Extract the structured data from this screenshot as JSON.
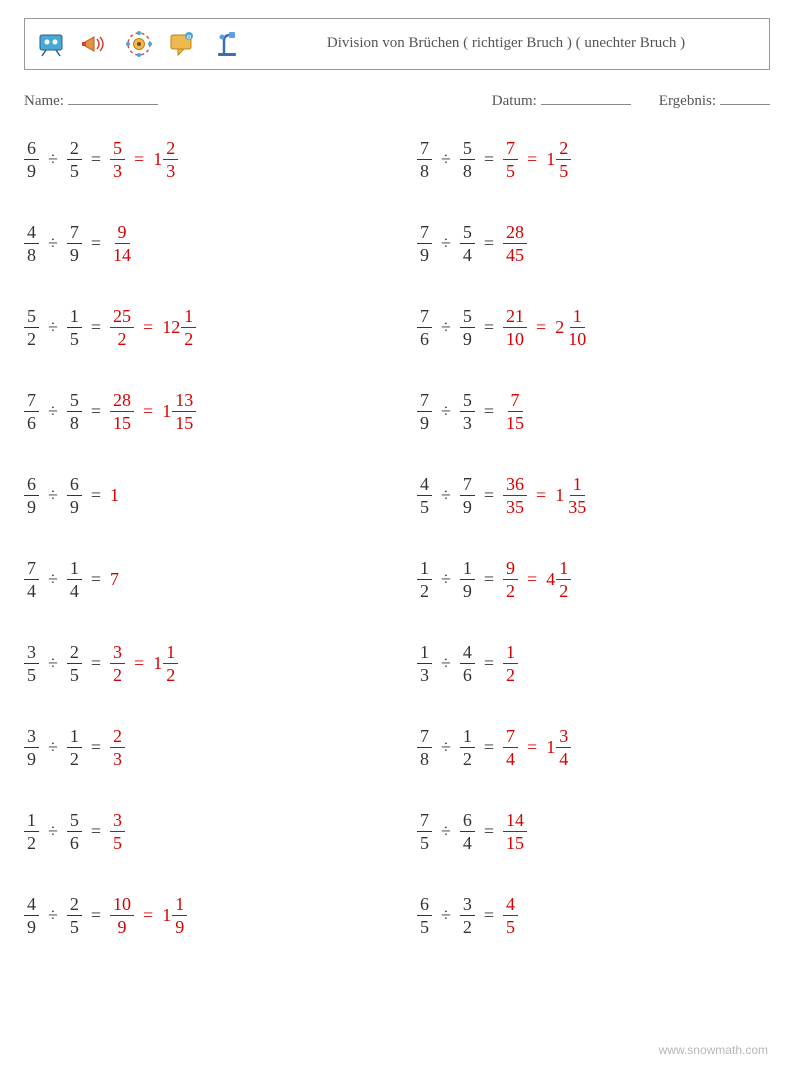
{
  "colors": {
    "answer": "#d40202",
    "text": "#333333",
    "border": "#999999",
    "metaText": "#555555",
    "footer": "#b7b7b7",
    "background": "#ffffff"
  },
  "typography": {
    "bodyFont": "Georgia, Times New Roman, serif",
    "problemFontSize": 18,
    "titleFontSize": 15,
    "metaFontSize": 15,
    "footerFontSize": 12
  },
  "layout": {
    "pageWidth": 794,
    "pageHeight": 1053,
    "columns": 2,
    "rowGap": 38,
    "headerHeight": 52
  },
  "header": {
    "title": "Division von Brüchen ( richtiger Bruch ) ( unechter Bruch )",
    "icons": [
      "presentation-icon",
      "megaphone-icon",
      "target-icon",
      "chat-icon",
      "microscope-icon"
    ]
  },
  "meta": {
    "nameLabel": "Name:",
    "dateLabel": "Datum:",
    "resultLabel": "Ergebnis:"
  },
  "problems": {
    "left": [
      {
        "a": {
          "n": 6,
          "d": 9
        },
        "b": {
          "n": 2,
          "d": 5
        },
        "r1": {
          "n": 5,
          "d": 3
        },
        "r2": {
          "w": 1,
          "n": 2,
          "d": 3
        }
      },
      {
        "a": {
          "n": 4,
          "d": 8
        },
        "b": {
          "n": 7,
          "d": 9
        },
        "r1": {
          "n": 9,
          "d": 14
        }
      },
      {
        "a": {
          "n": 5,
          "d": 2
        },
        "b": {
          "n": 1,
          "d": 5
        },
        "r1": {
          "n": 25,
          "d": 2
        },
        "r2": {
          "w": 12,
          "n": 1,
          "d": 2
        }
      },
      {
        "a": {
          "n": 7,
          "d": 6
        },
        "b": {
          "n": 5,
          "d": 8
        },
        "r1": {
          "n": 28,
          "d": 15
        },
        "r2": {
          "w": 1,
          "n": 13,
          "d": 15
        }
      },
      {
        "a": {
          "n": 6,
          "d": 9
        },
        "b": {
          "n": 6,
          "d": 9
        },
        "r1": {
          "int": 1
        }
      },
      {
        "a": {
          "n": 7,
          "d": 4
        },
        "b": {
          "n": 1,
          "d": 4
        },
        "r1": {
          "int": 7
        }
      },
      {
        "a": {
          "n": 3,
          "d": 5
        },
        "b": {
          "n": 2,
          "d": 5
        },
        "r1": {
          "n": 3,
          "d": 2
        },
        "r2": {
          "w": 1,
          "n": 1,
          "d": 2
        }
      },
      {
        "a": {
          "n": 3,
          "d": 9
        },
        "b": {
          "n": 1,
          "d": 2
        },
        "r1": {
          "n": 2,
          "d": 3
        }
      },
      {
        "a": {
          "n": 1,
          "d": 2
        },
        "b": {
          "n": 5,
          "d": 6
        },
        "r1": {
          "n": 3,
          "d": 5
        }
      },
      {
        "a": {
          "n": 4,
          "d": 9
        },
        "b": {
          "n": 2,
          "d": 5
        },
        "r1": {
          "n": 10,
          "d": 9
        },
        "r2": {
          "w": 1,
          "n": 1,
          "d": 9
        }
      }
    ],
    "right": [
      {
        "a": {
          "n": 7,
          "d": 8
        },
        "b": {
          "n": 5,
          "d": 8
        },
        "r1": {
          "n": 7,
          "d": 5
        },
        "r2": {
          "w": 1,
          "n": 2,
          "d": 5
        }
      },
      {
        "a": {
          "n": 7,
          "d": 9
        },
        "b": {
          "n": 5,
          "d": 4
        },
        "r1": {
          "n": 28,
          "d": 45
        }
      },
      {
        "a": {
          "n": 7,
          "d": 6
        },
        "b": {
          "n": 5,
          "d": 9
        },
        "r1": {
          "n": 21,
          "d": 10
        },
        "r2": {
          "w": 2,
          "n": 1,
          "d": 10
        }
      },
      {
        "a": {
          "n": 7,
          "d": 9
        },
        "b": {
          "n": 5,
          "d": 3
        },
        "r1": {
          "n": 7,
          "d": 15
        }
      },
      {
        "a": {
          "n": 4,
          "d": 5
        },
        "b": {
          "n": 7,
          "d": 9
        },
        "r1": {
          "n": 36,
          "d": 35
        },
        "r2": {
          "w": 1,
          "n": 1,
          "d": 35
        }
      },
      {
        "a": {
          "n": 1,
          "d": 2
        },
        "b": {
          "n": 1,
          "d": 9
        },
        "r1": {
          "n": 9,
          "d": 2
        },
        "r2": {
          "w": 4,
          "n": 1,
          "d": 2
        }
      },
      {
        "a": {
          "n": 1,
          "d": 3
        },
        "b": {
          "n": 4,
          "d": 6
        },
        "r1": {
          "n": 1,
          "d": 2
        }
      },
      {
        "a": {
          "n": 7,
          "d": 8
        },
        "b": {
          "n": 1,
          "d": 2
        },
        "r1": {
          "n": 7,
          "d": 4
        },
        "r2": {
          "w": 1,
          "n": 3,
          "d": 4
        }
      },
      {
        "a": {
          "n": 7,
          "d": 5
        },
        "b": {
          "n": 6,
          "d": 4
        },
        "r1": {
          "n": 14,
          "d": 15
        }
      },
      {
        "a": {
          "n": 6,
          "d": 5
        },
        "b": {
          "n": 3,
          "d": 2
        },
        "r1": {
          "n": 4,
          "d": 5
        }
      }
    ]
  },
  "footer": {
    "text": "www.snowmath.com"
  }
}
